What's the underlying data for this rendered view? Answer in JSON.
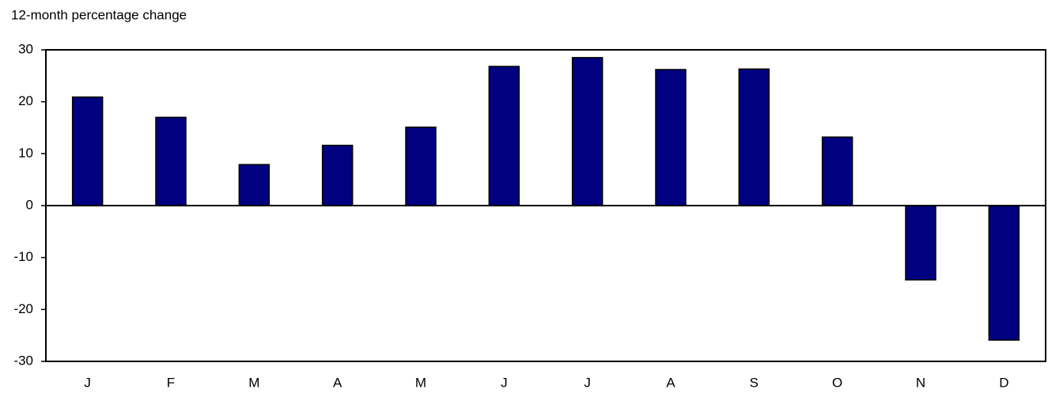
{
  "chart_data": {
    "type": "bar",
    "title": "12-month percentage change",
    "categories": [
      "J",
      "F",
      "M",
      "A",
      "M",
      "J",
      "J",
      "A",
      "S",
      "O",
      "N",
      "D"
    ],
    "values": [
      20.9,
      17.0,
      7.9,
      11.6,
      15.1,
      26.8,
      28.5,
      26.2,
      26.3,
      13.2,
      -14.3,
      -25.9
    ],
    "color": "#000080",
    "ylim": [
      -30,
      30
    ],
    "yticks": [
      -30,
      -20,
      -10,
      0,
      10,
      20,
      30
    ],
    "grid": false
  }
}
